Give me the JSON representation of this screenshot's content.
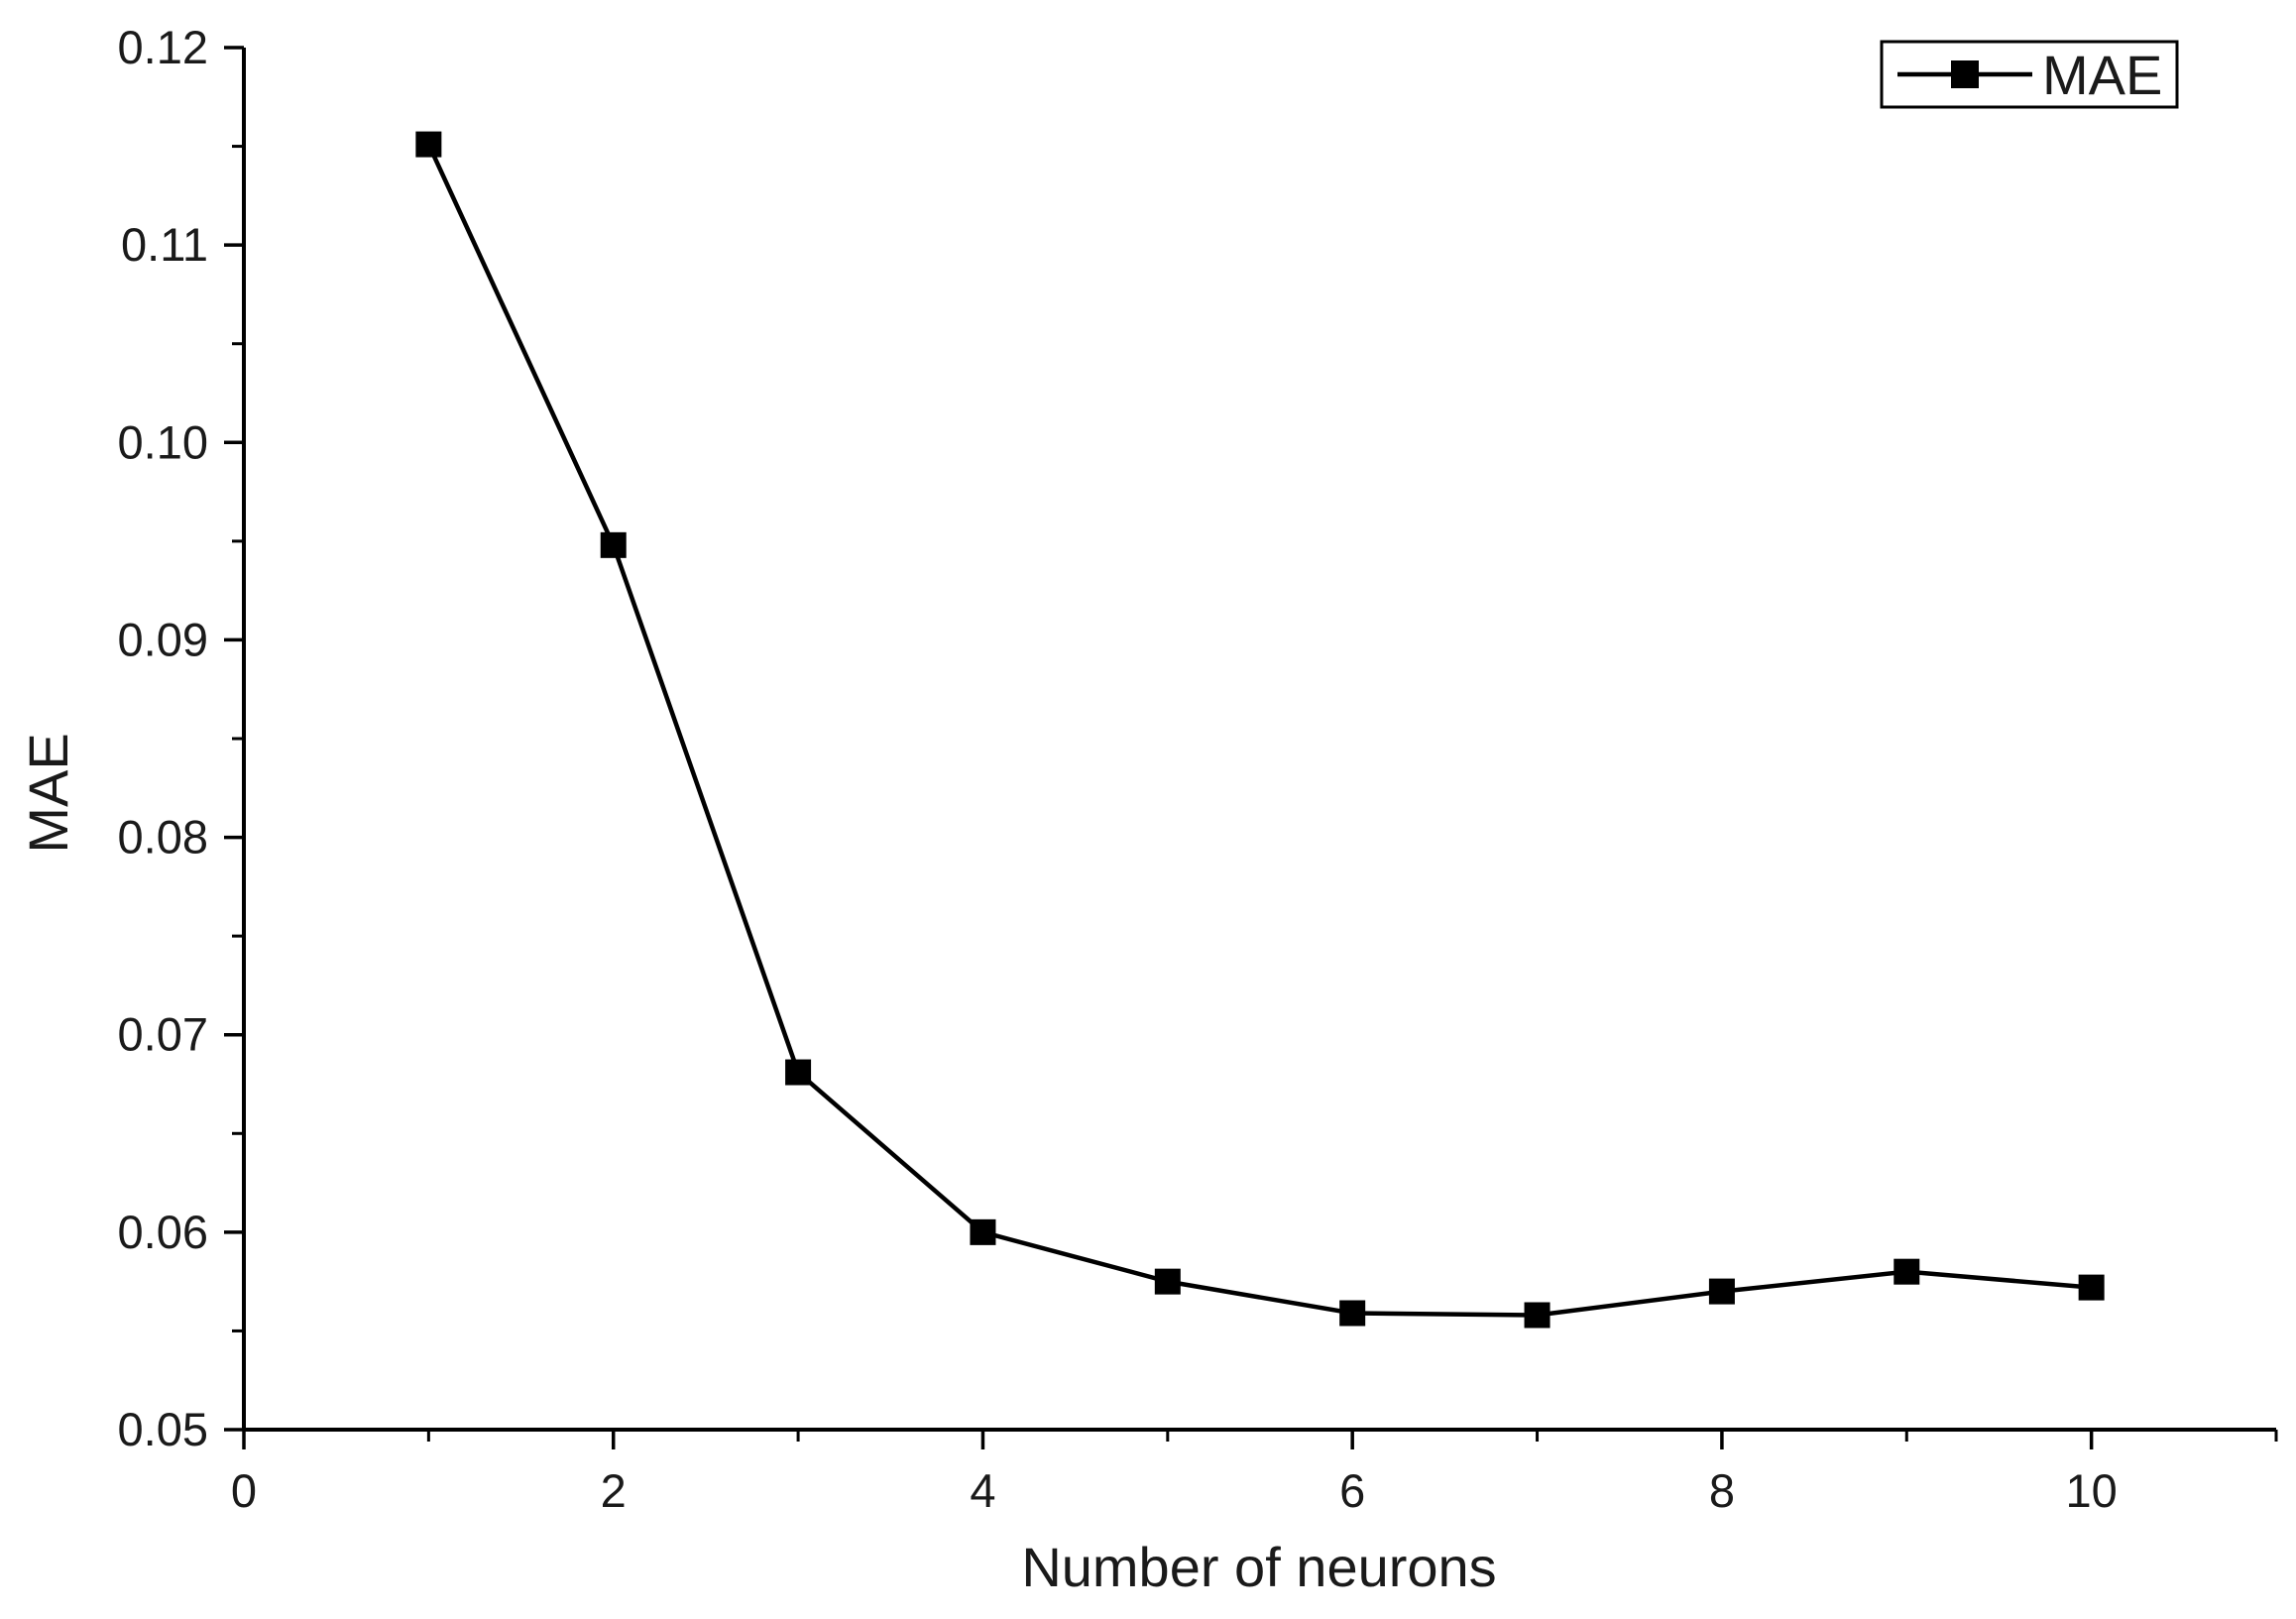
{
  "chart_data": {
    "type": "line",
    "title": "",
    "xlabel": "Number of neurons",
    "ylabel": "MAE",
    "xlim": [
      0,
      11
    ],
    "ylim": [
      0.05,
      0.12
    ],
    "x_ticks": [
      0,
      2,
      4,
      6,
      8,
      10
    ],
    "x_tick_labels": [
      "0",
      "2",
      "4",
      "6",
      "8",
      "10"
    ],
    "y_ticks": [
      0.05,
      0.06,
      0.07,
      0.08,
      0.09,
      0.1,
      0.11,
      0.12
    ],
    "y_tick_labels": [
      "0.05",
      "0.06",
      "0.07",
      "0.08",
      "0.09",
      "0.10",
      "0.11",
      "0.12"
    ],
    "grid": false,
    "legend_position": "top-right",
    "series": [
      {
        "name": "MAE",
        "color": "#000000",
        "marker": "square",
        "x": [
          1,
          2,
          3,
          4,
          5,
          6,
          7,
          8,
          9,
          10
        ],
        "y": [
          0.1151,
          0.0948,
          0.0681,
          0.06,
          0.0575,
          0.0559,
          0.0558,
          0.057,
          0.058,
          0.0572
        ]
      }
    ]
  }
}
